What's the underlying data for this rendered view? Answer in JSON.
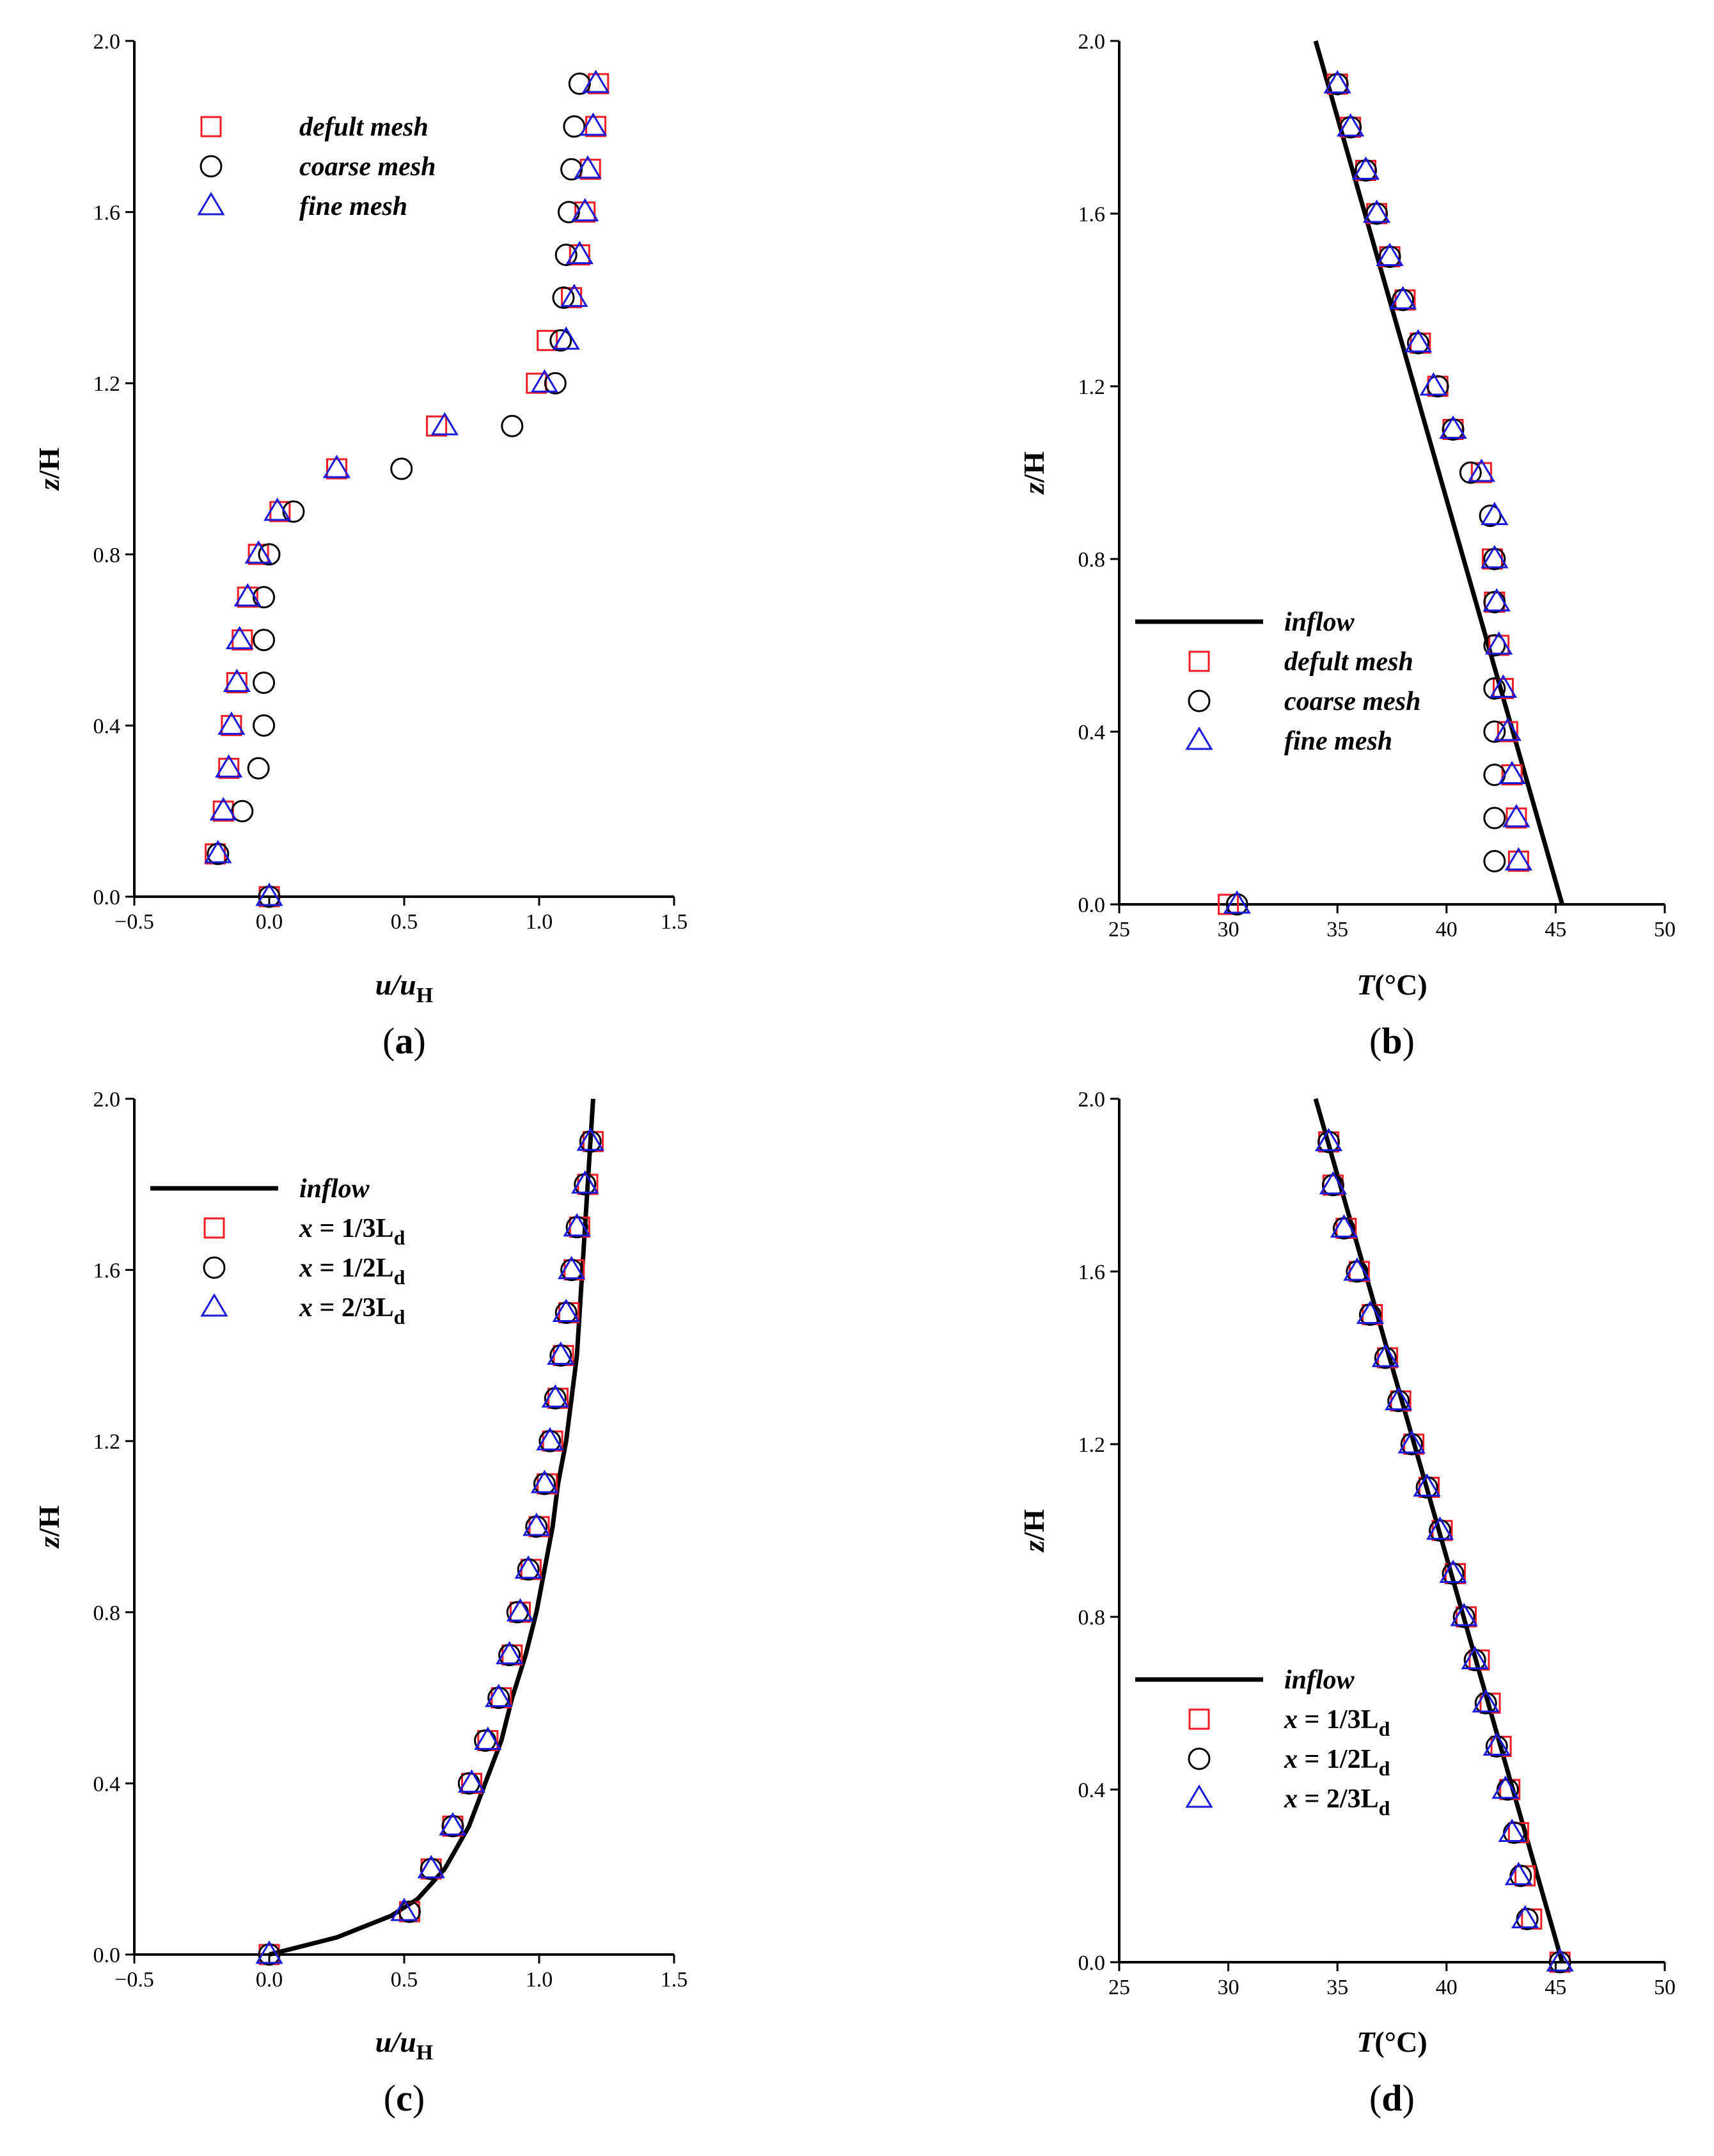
{
  "colors": {
    "axis": "#000000",
    "inflow": "#000000",
    "square": "#ee1c24",
    "circle": "#000000",
    "triangle": "#1a1adb"
  },
  "chart_data": [
    {
      "type": "scatter",
      "panel_label": "a",
      "xlabel": "u/u_H",
      "xlabel_main": "u/u",
      "xlabel_sub": "H",
      "ylabel": "z/H",
      "xlim": [
        -0.5,
        1.5
      ],
      "ylim": [
        0.0,
        2.0
      ],
      "xticks": [
        "−0.5",
        "0.0",
        "0.5",
        "1.0",
        "1.5"
      ],
      "yticks": [
        "0.0",
        "0.4",
        "0.8",
        "1.2",
        "1.6",
        "2.0"
      ],
      "legend_position": "top-left",
      "series": [
        {
          "name": "defult mesh",
          "label_main": "defult mesh",
          "label_sub": "",
          "marker": "square",
          "x": [
            -0.2,
            -0.17,
            -0.15,
            -0.14,
            -0.12,
            -0.1,
            -0.08,
            -0.04,
            0.04,
            0.25,
            0.62,
            0.99,
            1.03,
            1.12,
            1.15,
            1.17,
            1.19,
            1.21,
            1.22
          ],
          "y": [
            0.1,
            0.2,
            0.3,
            0.4,
            0.5,
            0.6,
            0.7,
            0.8,
            0.9,
            1.0,
            1.1,
            1.2,
            1.3,
            1.4,
            1.5,
            1.6,
            1.7,
            1.8,
            1.9
          ]
        },
        {
          "name": "coarse mesh",
          "label_main": "coarse mesh",
          "label_sub": "",
          "marker": "circle",
          "x": [
            -0.19,
            -0.1,
            -0.04,
            -0.02,
            -0.02,
            -0.02,
            -0.02,
            0.0,
            0.09,
            0.49,
            0.9,
            1.06,
            1.08,
            1.09,
            1.1,
            1.11,
            1.12,
            1.13,
            1.15
          ],
          "y": [
            0.1,
            0.2,
            0.3,
            0.4,
            0.5,
            0.6,
            0.7,
            0.8,
            0.9,
            1.0,
            1.1,
            1.2,
            1.3,
            1.4,
            1.5,
            1.6,
            1.7,
            1.8,
            1.9
          ]
        },
        {
          "name": "fine mesh",
          "label_main": "fine mesh",
          "label_sub": "",
          "marker": "triangle",
          "x": [
            -0.19,
            -0.17,
            -0.15,
            -0.14,
            -0.12,
            -0.11,
            -0.08,
            -0.04,
            0.03,
            0.25,
            0.65,
            1.02,
            1.1,
            1.13,
            1.15,
            1.17,
            1.18,
            1.2,
            1.21
          ],
          "y": [
            0.1,
            0.2,
            0.3,
            0.4,
            0.5,
            0.6,
            0.7,
            0.8,
            0.9,
            1.0,
            1.1,
            1.2,
            1.3,
            1.4,
            1.5,
            1.6,
            1.7,
            1.8,
            1.9
          ]
        }
      ],
      "extra_points": [
        {
          "marker": "square",
          "x": 0.0,
          "y": 0.0
        },
        {
          "marker": "circle",
          "x": 0.0,
          "y": 0.0
        },
        {
          "marker": "triangle",
          "x": 0.0,
          "y": 0.0
        }
      ]
    },
    {
      "type": "line",
      "panel_label": "b",
      "xlabel": "T(°C)",
      "xlabel_main": "T",
      "xlabel_unit": "(°C)",
      "ylabel": "z/H",
      "xlim": [
        25,
        50
      ],
      "ylim": [
        0.0,
        2.0
      ],
      "xticks": [
        "25",
        "30",
        "35",
        "40",
        "45",
        "50"
      ],
      "yticks": [
        "0.0",
        "0.4",
        "0.8",
        "1.2",
        "1.6",
        "2.0"
      ],
      "legend_position": "center-left",
      "inflow": {
        "name": "inflow",
        "x": [
          45.3,
          34.0
        ],
        "y": [
          0.0,
          2.0
        ]
      },
      "series": [
        {
          "name": "defult mesh",
          "label_main": "defult mesh",
          "label_sub": "",
          "marker": "square",
          "x": [
            30.0,
            43.3,
            43.2,
            43.0,
            42.8,
            42.6,
            42.4,
            42.2,
            42.1,
            41.6,
            40.3,
            39.6,
            38.8,
            38.1,
            37.4,
            36.8,
            36.3,
            35.6,
            35.0
          ],
          "y": [
            0.0,
            0.1,
            0.2,
            0.3,
            0.4,
            0.5,
            0.6,
            0.7,
            0.8,
            1.0,
            1.1,
            1.2,
            1.3,
            1.4,
            1.5,
            1.6,
            1.7,
            1.8,
            1.9
          ]
        },
        {
          "name": "coarse mesh",
          "label_main": "coarse mesh",
          "label_sub": "",
          "marker": "circle",
          "x": [
            30.4,
            42.2,
            42.2,
            42.2,
            42.2,
            42.2,
            42.2,
            42.2,
            42.2,
            42.0,
            41.1,
            40.3,
            39.6,
            38.7,
            38.0,
            37.4,
            36.8,
            36.3,
            35.6,
            35.0
          ],
          "y": [
            0.0,
            0.1,
            0.2,
            0.3,
            0.4,
            0.5,
            0.6,
            0.7,
            0.8,
            0.9,
            1.0,
            1.1,
            1.2,
            1.3,
            1.4,
            1.5,
            1.6,
            1.7,
            1.8,
            1.9
          ]
        },
        {
          "name": "fine mesh",
          "label_main": "fine mesh",
          "label_sub": "",
          "marker": "triangle",
          "x": [
            30.4,
            43.3,
            43.2,
            43.0,
            42.8,
            42.6,
            42.4,
            42.3,
            42.2,
            42.2,
            41.6,
            40.3,
            39.4,
            38.7,
            38.0,
            37.4,
            36.8,
            36.3,
            35.6,
            35.0
          ],
          "y": [
            0.0,
            0.1,
            0.2,
            0.3,
            0.4,
            0.5,
            0.6,
            0.7,
            0.8,
            0.9,
            1.0,
            1.1,
            1.2,
            1.3,
            1.4,
            1.5,
            1.6,
            1.7,
            1.8,
            1.9
          ]
        }
      ]
    },
    {
      "type": "line",
      "panel_label": "c",
      "xlabel": "u/u_H",
      "xlabel_main": "u/u",
      "xlabel_sub": "H",
      "ylabel": "z/H",
      "xlim": [
        -0.5,
        1.5
      ],
      "ylim": [
        0.0,
        2.0
      ],
      "xticks": [
        "−0.5",
        "0.0",
        "0.5",
        "1.0",
        "1.5"
      ],
      "yticks": [
        "0.0",
        "0.4",
        "0.8",
        "1.2",
        "1.6",
        "2.0"
      ],
      "legend_position": "top-left",
      "inflow": {
        "name": "inflow",
        "x": [
          0.0,
          0.25,
          0.45,
          0.55,
          0.65,
          0.74,
          0.8,
          0.86,
          0.9,
          0.95,
          0.99,
          1.02,
          1.05,
          1.07,
          1.1,
          1.12,
          1.14,
          1.16,
          1.18,
          1.2
        ],
        "y": [
          0.0,
          0.04,
          0.09,
          0.13,
          0.2,
          0.3,
          0.4,
          0.5,
          0.6,
          0.7,
          0.8,
          0.9,
          1.0,
          1.1,
          1.2,
          1.3,
          1.4,
          1.6,
          1.8,
          2.0
        ]
      },
      "series": [
        {
          "name": "x = 1/3Ld",
          "label_main": "x = 1/3L",
          "label_sub": "d",
          "marker": "square",
          "x": [
            0.0,
            0.52,
            0.6,
            0.68,
            0.75,
            0.81,
            0.86,
            0.9,
            0.93,
            0.97,
            1.0,
            1.03,
            1.05,
            1.07,
            1.09,
            1.11,
            1.13,
            1.15,
            1.18,
            1.2
          ],
          "y": [
            0.0,
            0.1,
            0.2,
            0.3,
            0.4,
            0.5,
            0.6,
            0.7,
            0.8,
            0.9,
            1.0,
            1.1,
            1.2,
            1.3,
            1.4,
            1.5,
            1.6,
            1.7,
            1.8,
            1.9
          ]
        },
        {
          "name": "x = 1/2Ld",
          "label_main": "x = 1/2L",
          "label_sub": "d",
          "marker": "circle",
          "x": [
            0.0,
            0.52,
            0.6,
            0.68,
            0.74,
            0.8,
            0.85,
            0.89,
            0.92,
            0.96,
            0.99,
            1.02,
            1.04,
            1.06,
            1.08,
            1.1,
            1.12,
            1.14,
            1.17,
            1.19
          ],
          "y": [
            0.0,
            0.1,
            0.2,
            0.3,
            0.4,
            0.5,
            0.6,
            0.7,
            0.8,
            0.9,
            1.0,
            1.1,
            1.2,
            1.3,
            1.4,
            1.5,
            1.6,
            1.7,
            1.8,
            1.9
          ]
        },
        {
          "name": "x = 2/3Ld",
          "label_main": "x = 2/3L",
          "label_sub": "d",
          "marker": "triangle",
          "x": [
            0.0,
            0.5,
            0.6,
            0.68,
            0.75,
            0.81,
            0.85,
            0.89,
            0.93,
            0.96,
            0.99,
            1.02,
            1.04,
            1.06,
            1.08,
            1.1,
            1.12,
            1.14,
            1.17,
            1.19
          ],
          "y": [
            0.0,
            0.1,
            0.2,
            0.3,
            0.4,
            0.5,
            0.6,
            0.7,
            0.8,
            0.9,
            1.0,
            1.1,
            1.2,
            1.3,
            1.4,
            1.5,
            1.6,
            1.7,
            1.8,
            1.9
          ]
        }
      ]
    },
    {
      "type": "line",
      "panel_label": "d",
      "xlabel": "T(°C)",
      "xlabel_main": "T",
      "xlabel_unit": "(°C)",
      "ylabel": "z/H",
      "xlim": [
        25,
        50
      ],
      "ylim": [
        0.0,
        2.0
      ],
      "xticks": [
        "25",
        "30",
        "35",
        "40",
        "45",
        "50"
      ],
      "yticks": [
        "0.0",
        "0.4",
        "0.8",
        "1.2",
        "1.6",
        "2.0"
      ],
      "legend_position": "center-left",
      "inflow": {
        "name": "inflow",
        "x": [
          45.3,
          34.0
        ],
        "y": [
          0.0,
          2.0
        ]
      },
      "series": [
        {
          "name": "x = 1/3Ld",
          "label_main": "x = 1/3L",
          "label_sub": "d",
          "marker": "square",
          "x": [
            45.2,
            43.9,
            43.6,
            43.3,
            42.9,
            42.5,
            42.0,
            41.5,
            40.9,
            40.4,
            39.8,
            39.2,
            38.5,
            37.9,
            37.3,
            36.6,
            36.0,
            35.4,
            34.8,
            34.6
          ],
          "y": [
            0.0,
            0.1,
            0.2,
            0.3,
            0.4,
            0.5,
            0.6,
            0.7,
            0.8,
            0.9,
            1.0,
            1.1,
            1.2,
            1.3,
            1.4,
            1.5,
            1.6,
            1.7,
            1.8,
            1.9
          ]
        },
        {
          "name": "x = 1/2Ld",
          "label_main": "x = 1/2L",
          "label_sub": "d",
          "marker": "circle",
          "x": [
            45.2,
            43.7,
            43.4,
            43.1,
            42.8,
            42.3,
            41.8,
            41.3,
            40.8,
            40.3,
            39.7,
            39.1,
            38.4,
            37.8,
            37.2,
            36.5,
            35.9,
            35.3,
            34.8,
            34.6
          ],
          "y": [
            0.0,
            0.1,
            0.2,
            0.3,
            0.4,
            0.5,
            0.6,
            0.7,
            0.8,
            0.9,
            1.0,
            1.1,
            1.2,
            1.3,
            1.4,
            1.5,
            1.6,
            1.7,
            1.8,
            1.9
          ]
        },
        {
          "name": "x = 2/3Ld",
          "label_main": "x = 2/3L",
          "label_sub": "d",
          "marker": "triangle",
          "x": [
            45.2,
            43.6,
            43.3,
            43.0,
            42.7,
            42.3,
            41.8,
            41.3,
            40.8,
            40.3,
            39.7,
            39.1,
            38.4,
            37.8,
            37.2,
            36.5,
            35.9,
            35.3,
            34.8,
            34.6
          ],
          "y": [
            0.0,
            0.1,
            0.2,
            0.3,
            0.4,
            0.5,
            0.6,
            0.7,
            0.8,
            0.9,
            1.0,
            1.1,
            1.2,
            1.3,
            1.4,
            1.5,
            1.6,
            1.7,
            1.8,
            1.9
          ]
        }
      ]
    }
  ]
}
